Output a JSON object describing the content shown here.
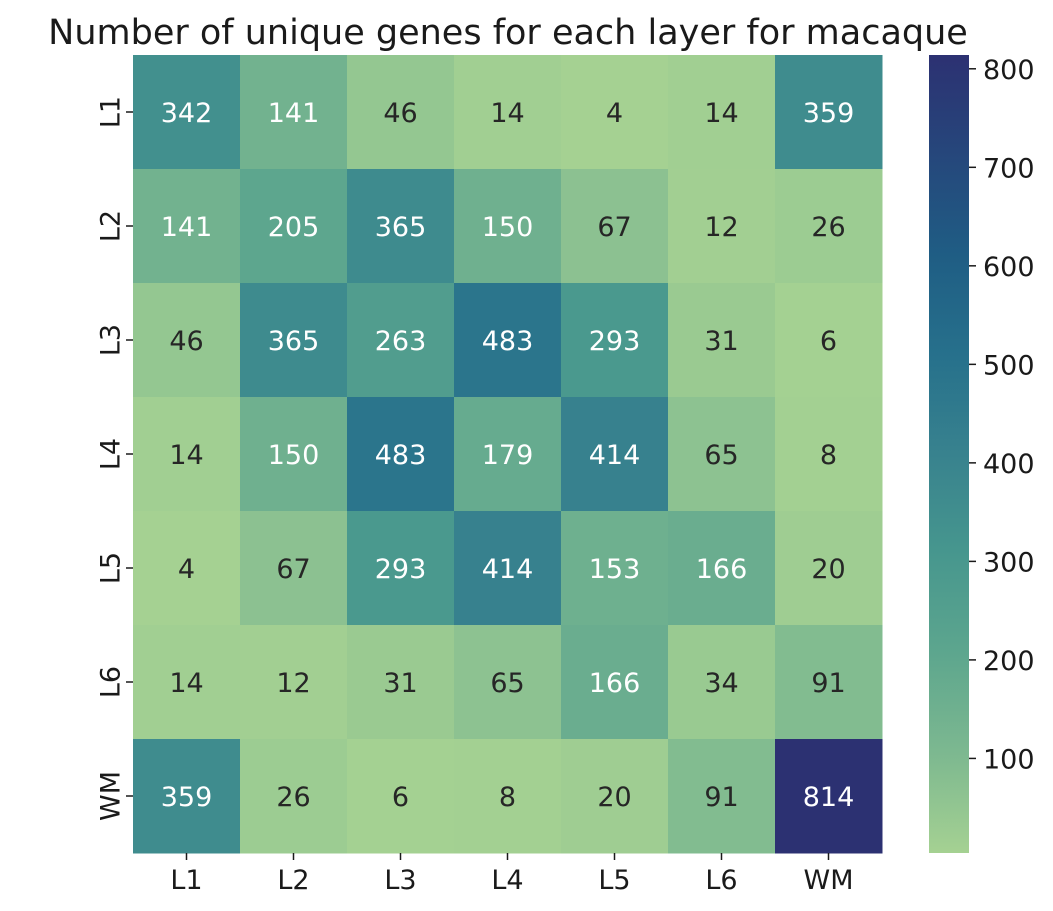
{
  "chart_data": {
    "type": "heatmap",
    "title": "Number of unique genes for each layer for macaque",
    "x_categories": [
      "L1",
      "L2",
      "L3",
      "L4",
      "L5",
      "L6",
      "WM"
    ],
    "y_categories": [
      "L1",
      "L2",
      "L3",
      "L4",
      "L5",
      "L6",
      "WM"
    ],
    "values": [
      [
        342,
        141,
        46,
        14,
        4,
        14,
        359
      ],
      [
        141,
        205,
        365,
        150,
        67,
        12,
        26
      ],
      [
        46,
        365,
        263,
        483,
        293,
        31,
        6
      ],
      [
        14,
        150,
        483,
        179,
        414,
        65,
        8
      ],
      [
        4,
        67,
        293,
        414,
        153,
        166,
        20
      ],
      [
        14,
        12,
        31,
        65,
        166,
        34,
        91
      ],
      [
        359,
        26,
        6,
        8,
        20,
        91,
        814
      ]
    ],
    "colormap": "crest",
    "value_range": [
      4,
      814
    ],
    "colorbar": {
      "ticks": [
        100,
        200,
        300,
        400,
        500,
        600,
        700,
        800
      ],
      "tick_labels": [
        "100",
        "200",
        "300",
        "400",
        "500",
        "600",
        "700",
        "800"
      ]
    },
    "colors": {
      "low": "#a5d192",
      "high": "#2c3172",
      "text_dark": "#262626",
      "text_light": "#ffffff"
    }
  }
}
